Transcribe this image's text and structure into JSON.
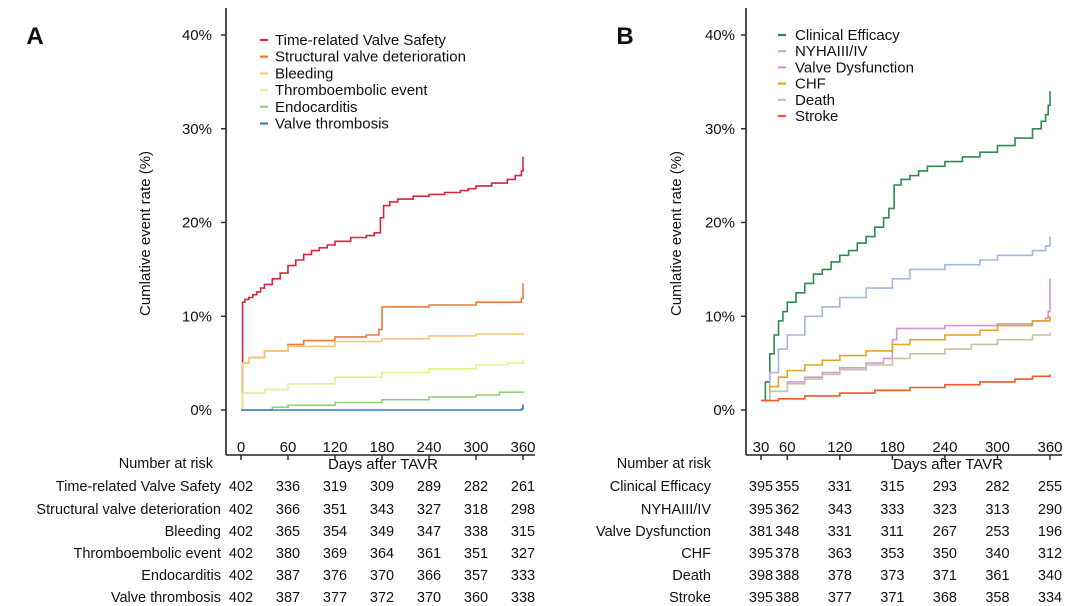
{
  "chart_data": [
    {
      "type": "line",
      "panel_label": "A",
      "xlabel": "Days after TAVR",
      "ylabel": "Cumlative event rate (%)",
      "x_ticks": [
        0,
        60,
        120,
        180,
        240,
        300,
        360
      ],
      "y_ticks": [
        "0%",
        "10%",
        "20%",
        "30%",
        "40%"
      ],
      "xlim": [
        0,
        360
      ],
      "ylim": [
        0,
        40
      ],
      "grid": false,
      "legend_position": "top",
      "series": [
        {
          "name": "Time-related Valve Safety",
          "color": "#d7263d",
          "x": [
            0,
            2,
            5,
            10,
            15,
            20,
            25,
            30,
            40,
            50,
            60,
            70,
            80,
            90,
            100,
            110,
            120,
            140,
            160,
            170,
            178,
            182,
            190,
            200,
            220,
            240,
            260,
            280,
            290,
            300,
            320,
            340,
            350,
            358,
            360
          ],
          "y": [
            0,
            11.5,
            11.8,
            12.0,
            12.3,
            12.6,
            13.0,
            13.4,
            14.0,
            14.6,
            15.4,
            16.0,
            16.6,
            17.0,
            17.3,
            17.6,
            18.0,
            18.4,
            18.6,
            18.9,
            20.5,
            21.8,
            22.2,
            22.5,
            22.8,
            23.0,
            23.2,
            23.4,
            23.6,
            23.9,
            24.2,
            24.6,
            25.0,
            25.5,
            27.0
          ]
        },
        {
          "name": "Structural valve deterioration",
          "color": "#f07a3c",
          "x": [
            0,
            2,
            10,
            30,
            60,
            80,
            120,
            160,
            176,
            180,
            240,
            300,
            358,
            360
          ],
          "y": [
            0,
            5.0,
            5.6,
            6.3,
            7.0,
            7.4,
            7.8,
            8.0,
            8.6,
            11.0,
            11.2,
            11.5,
            11.9,
            13.5
          ]
        },
        {
          "name": "Bleeding",
          "color": "#f8c77e",
          "x": [
            0,
            2,
            10,
            30,
            60,
            120,
            180,
            240,
            300,
            360
          ],
          "y": [
            0,
            5.0,
            5.6,
            6.3,
            6.8,
            7.3,
            7.6,
            7.9,
            8.1,
            8.3
          ]
        },
        {
          "name": "Thromboembolic event",
          "color": "#e9ee8a",
          "x": [
            0,
            2,
            30,
            60,
            120,
            180,
            240,
            300,
            340,
            360
          ],
          "y": [
            0,
            1.8,
            2.2,
            2.8,
            3.5,
            4.0,
            4.4,
            4.8,
            5.0,
            5.3
          ]
        },
        {
          "name": "Endocarditis",
          "color": "#8fd17b",
          "x": [
            0,
            40,
            60,
            120,
            180,
            240,
            300,
            330,
            360
          ],
          "y": [
            0,
            0.3,
            0.5,
            0.8,
            1.1,
            1.4,
            1.6,
            1.9,
            2.0
          ]
        },
        {
          "name": "Valve thrombosis",
          "color": "#2e7fc2",
          "x": [
            0,
            358,
            360
          ],
          "y": [
            0,
            0.1,
            0.6
          ]
        }
      ],
      "risk_table": {
        "header": "Number at risk",
        "rows": [
          {
            "label": "Time-related Valve Safety",
            "values": [
              "402",
              "336",
              "319",
              "309",
              "289",
              "282",
              "261"
            ]
          },
          {
            "label": "Structural valve deterioration",
            "values": [
              "402",
              "366",
              "351",
              "343",
              "327",
              "318",
              "298"
            ]
          },
          {
            "label": "Bleeding",
            "values": [
              "402",
              "365",
              "354",
              "349",
              "347",
              "338",
              "315"
            ]
          },
          {
            "label": "Thromboembolic event",
            "values": [
              "402",
              "380",
              "369",
              "364",
              "361",
              "351",
              "327"
            ]
          },
          {
            "label": "Endocarditis",
            "values": [
              "402",
              "387",
              "376",
              "370",
              "366",
              "357",
              "333"
            ]
          },
          {
            "label": "Valve thrombosis",
            "values": [
              "402",
              "387",
              "377",
              "372",
              "370",
              "360",
              "338"
            ]
          }
        ]
      }
    },
    {
      "type": "line",
      "panel_label": "B",
      "xlabel": "Days after TAVR",
      "ylabel": "Cumlative event rate (%)",
      "x_ticks": [
        30,
        60,
        120,
        180,
        240,
        300,
        360
      ],
      "y_ticks": [
        "0%",
        "10%",
        "20%",
        "30%",
        "40%"
      ],
      "xlim": [
        30,
        360
      ],
      "ylim": [
        0,
        40
      ],
      "grid": false,
      "legend_position": "top",
      "series": [
        {
          "name": "Clinical Efficacy",
          "color": "#2e8b4a",
          "x": [
            30,
            35,
            40,
            45,
            50,
            55,
            60,
            70,
            80,
            90,
            100,
            110,
            120,
            130,
            140,
            150,
            160,
            170,
            176,
            182,
            190,
            200,
            210,
            220,
            240,
            260,
            280,
            300,
            320,
            340,
            350,
            355,
            358,
            360
          ],
          "y": [
            1.0,
            3.0,
            6.0,
            8.0,
            9.5,
            10.5,
            11.5,
            12.5,
            13.5,
            14.5,
            15.0,
            15.8,
            16.5,
            17.0,
            17.8,
            18.5,
            19.5,
            20.5,
            21.5,
            24.0,
            24.6,
            25.0,
            25.5,
            26.0,
            26.5,
            27.0,
            27.5,
            28.2,
            29.0,
            30.0,
            30.8,
            31.5,
            32.5,
            34.0
          ]
        },
        {
          "name": "NYHAIII/IV",
          "color": "#a3b8e0",
          "x": [
            30,
            40,
            50,
            60,
            80,
            100,
            120,
            150,
            180,
            200,
            240,
            280,
            300,
            340,
            355,
            360
          ],
          "y": [
            1.0,
            4.0,
            6.5,
            8.0,
            10.0,
            11.0,
            12.0,
            13.0,
            14.0,
            15.0,
            15.5,
            16.0,
            16.5,
            17.0,
            17.5,
            18.5
          ]
        },
        {
          "name": "Valve Dysfunction",
          "color": "#d596d9",
          "x": [
            30,
            40,
            60,
            80,
            100,
            120,
            150,
            170,
            180,
            185,
            240,
            300,
            340,
            355,
            358,
            360
          ],
          "y": [
            1.0,
            2.0,
            3.0,
            3.5,
            4.0,
            4.5,
            5.0,
            5.5,
            7.5,
            8.7,
            9.0,
            9.2,
            9.5,
            9.8,
            10.5,
            14.0
          ]
        },
        {
          "name": "CHF",
          "color": "#e0a526",
          "x": [
            30,
            40,
            50,
            60,
            80,
            100,
            120,
            150,
            180,
            200,
            240,
            280,
            300,
            340,
            360
          ],
          "y": [
            1.0,
            2.5,
            3.5,
            4.2,
            4.8,
            5.3,
            5.8,
            6.3,
            7.0,
            7.5,
            8.0,
            8.5,
            9.0,
            9.5,
            10.0
          ]
        },
        {
          "name": "Death",
          "color": "#c4c2a4",
          "x": [
            30,
            40,
            60,
            80,
            100,
            120,
            150,
            180,
            200,
            240,
            270,
            300,
            340,
            360
          ],
          "y": [
            1.0,
            2.0,
            2.8,
            3.3,
            3.8,
            4.3,
            4.8,
            5.5,
            6.0,
            6.5,
            7.0,
            7.5,
            8.0,
            8.3
          ]
        },
        {
          "name": "Stroke",
          "color": "#ef5a2b",
          "x": [
            30,
            50,
            80,
            120,
            160,
            200,
            240,
            280,
            320,
            340,
            360
          ],
          "y": [
            1.0,
            1.2,
            1.5,
            1.8,
            2.1,
            2.4,
            2.7,
            3.0,
            3.3,
            3.6,
            3.8
          ]
        }
      ],
      "risk_table": {
        "header": "Number at risk",
        "rows": [
          {
            "label": "Clinical Efficacy",
            "values": [
              "395",
              "355",
              "331",
              "315",
              "293",
              "282",
              "255"
            ]
          },
          {
            "label": "NYHAIII/IV",
            "values": [
              "395",
              "362",
              "343",
              "333",
              "323",
              "313",
              "290"
            ]
          },
          {
            "label": "Valve Dysfunction",
            "values": [
              "381",
              "348",
              "331",
              "311",
              "267",
              "253",
              "196"
            ]
          },
          {
            "label": "CHF",
            "values": [
              "395",
              "378",
              "363",
              "353",
              "350",
              "340",
              "312"
            ]
          },
          {
            "label": "Death",
            "values": [
              "398",
              "388",
              "378",
              "373",
              "371",
              "361",
              "340"
            ]
          },
          {
            "label": "Stroke",
            "values": [
              "395",
              "388",
              "377",
              "371",
              "368",
              "358",
              "334"
            ]
          }
        ]
      }
    }
  ]
}
